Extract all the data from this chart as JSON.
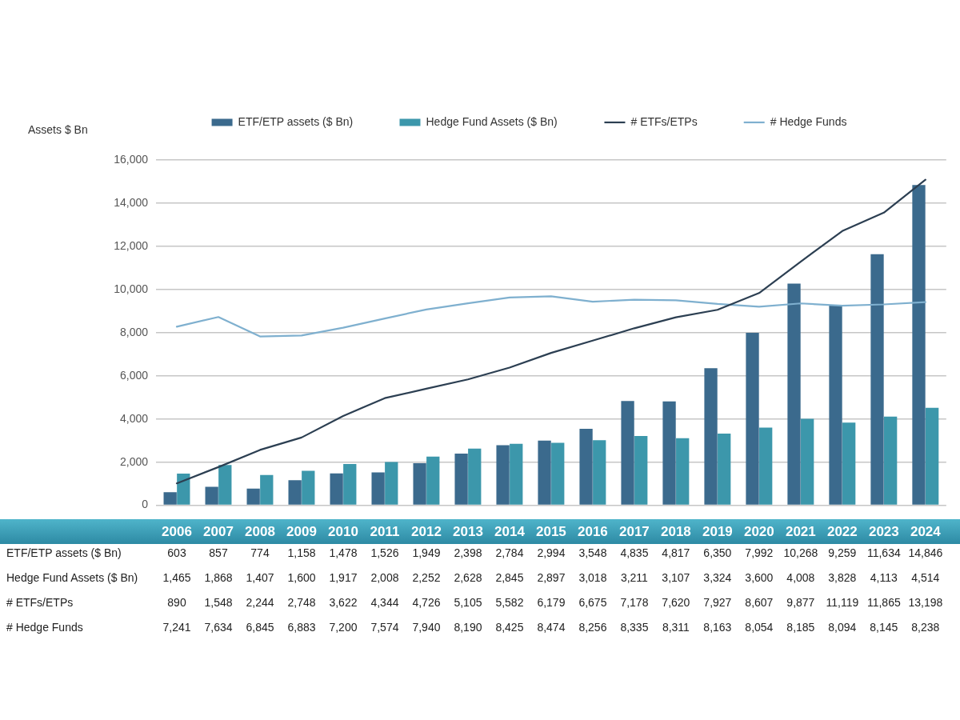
{
  "chart_data": {
    "type": "bar",
    "ylabel": "Assets $ Bn",
    "categories": [
      "2006",
      "2007",
      "2008",
      "2009",
      "2010",
      "2011",
      "2012",
      "2013",
      "2014",
      "2015",
      "2016",
      "2017",
      "2018",
      "2019",
      "2020",
      "2021",
      "2022",
      "2023",
      "2024"
    ],
    "series": [
      {
        "name": "ETF/ETP assets ($ Bn)",
        "color": "#3b6a8d",
        "values": [
          603,
          857,
          774,
          1158,
          1478,
          1526,
          1949,
          2398,
          2784,
          2994,
          3548,
          4835,
          4817,
          6350,
          7992,
          10268,
          9259,
          11634,
          14846
        ],
        "value_labels": [
          "603",
          "857",
          "774",
          "1,158",
          "1,478",
          "1,526",
          "1,949",
          "2,398",
          "2,784",
          "2,994",
          "3,548",
          "4,835",
          "4,817",
          "6,350",
          "7,992",
          "10,268",
          "9,259",
          "11,634",
          "14,846"
        ]
      },
      {
        "name": "Hedge Fund Assets ($ Bn)",
        "color": "#3c97ab",
        "values": [
          1465,
          1868,
          1407,
          1600,
          1917,
          2008,
          2252,
          2628,
          2845,
          2897,
          3018,
          3211,
          3107,
          3324,
          3600,
          4008,
          3828,
          4113,
          4514
        ],
        "value_labels": [
          "1,465",
          "1,868",
          "1,407",
          "1,600",
          "1,917",
          "2,008",
          "2,252",
          "2,628",
          "2,845",
          "2,897",
          "3,018",
          "3,211",
          "3,107",
          "3,324",
          "3,600",
          "4,008",
          "3,828",
          "4,113",
          "4,514"
        ]
      },
      {
        "name": "# ETFs/ETPs",
        "type": "line",
        "axis": "y2",
        "color": "#2c3f52",
        "values": [
          890,
          1548,
          2244,
          2748,
          3622,
          4344,
          4726,
          5105,
          5582,
          6179,
          6675,
          7178,
          7620,
          7927,
          8607,
          9877,
          11119,
          11865,
          13198
        ],
        "value_labels": [
          "890",
          "1,548",
          "2,244",
          "2,748",
          "3,622",
          "4,344",
          "4,726",
          "5,105",
          "5,582",
          "6,179",
          "6,675",
          "7,178",
          "7,620",
          "7,927",
          "8,607",
          "9,877",
          "11,119",
          "11,865",
          "13,198"
        ]
      },
      {
        "name": "# Hedge Funds",
        "type": "line",
        "axis": "y2",
        "color": "#7fb0cf",
        "values": [
          7241,
          7634,
          6845,
          6883,
          7200,
          7574,
          7940,
          8190,
          8425,
          8474,
          8256,
          8335,
          8311,
          8163,
          8054,
          8185,
          8094,
          8145,
          8238
        ],
        "value_labels": [
          "7,241",
          "7,634",
          "6,845",
          "6,883",
          "7,200",
          "7,574",
          "7,940",
          "8,190",
          "8,425",
          "8,474",
          "8,256",
          "8,335",
          "8,311",
          "8,163",
          "8,054",
          "8,185",
          "8,094",
          "8,145",
          "8,238"
        ]
      }
    ],
    "ylim": [
      0,
      16000
    ],
    "yticks": [
      {
        "value": 0,
        "label": "0"
      },
      {
        "value": 2000,
        "label": "2,000"
      },
      {
        "value": 4000,
        "label": "4,000"
      },
      {
        "value": 6000,
        "label": "6,000"
      },
      {
        "value": 8000,
        "label": "8,000"
      },
      {
        "value": 10000,
        "label": "10,000"
      },
      {
        "value": 12000,
        "label": "12,000"
      },
      {
        "value": 14000,
        "label": "14,000"
      },
      {
        "value": 16000,
        "label": "16,000"
      }
    ],
    "y2lim": [
      0,
      14000
    ],
    "grid": "y",
    "legend": "top",
    "marker": "none",
    "line_style": "solid"
  }
}
